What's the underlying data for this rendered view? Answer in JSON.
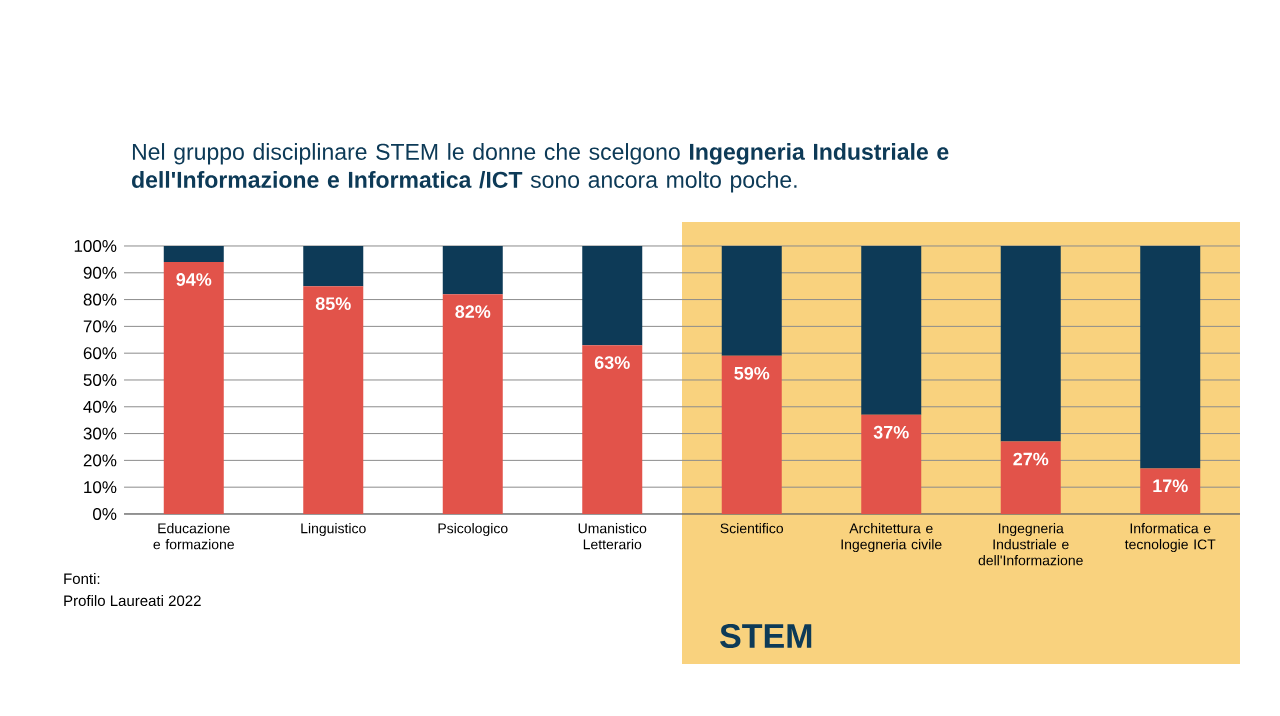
{
  "chart_data": {
    "type": "bar",
    "stacked": true,
    "title": "Nel gruppo disciplinare STEM le donne che scelgono **Ingegneria Industriale e dell'Informazione e Informatica /ICT** sono ancora molto poche.",
    "categories": [
      "Educazione e formazione",
      "Linguistico",
      "Psicologico",
      "Umanistico Letterario",
      "Scientifico",
      "Architettura e Ingegneria civile",
      "Ingegneria Industriale e dell'Informazione",
      "Informatica e tecnologie ICT"
    ],
    "series": [
      {
        "color": "#e2534a",
        "values": [
          94,
          85,
          82,
          63,
          59,
          37,
          27,
          17
        ],
        "value_labels": [
          "94%",
          "85%",
          "82%",
          "63%",
          "59%",
          "37%",
          "27%",
          "17%"
        ]
      },
      {
        "color": "#0d3a57",
        "values": [
          6,
          15,
          18,
          37,
          41,
          63,
          73,
          83
        ]
      }
    ],
    "ylim": [
      0,
      100
    ],
    "yticks": [
      {
        "value": 0,
        "label": "0%"
      },
      {
        "value": 10,
        "label": "10%"
      },
      {
        "value": 20,
        "label": "20%"
      },
      {
        "value": 30,
        "label": "30%"
      },
      {
        "value": 40,
        "label": "40%"
      },
      {
        "value": 50,
        "label": "50%"
      },
      {
        "value": 60,
        "label": "60%"
      },
      {
        "value": 70,
        "label": "70%"
      },
      {
        "value": 80,
        "label": "80%"
      },
      {
        "value": 90,
        "label": "90%"
      },
      {
        "value": 100,
        "label": "100%"
      }
    ],
    "grid": "y",
    "bands": [
      {
        "axis": "x",
        "from": "Scientifico",
        "to": "Informatica e tecnologie ICT",
        "label": "STEM",
        "color": "#f9d27e"
      }
    ],
    "annotations": [
      "Fonti:",
      "Profilo Laureati 2022"
    ]
  }
}
